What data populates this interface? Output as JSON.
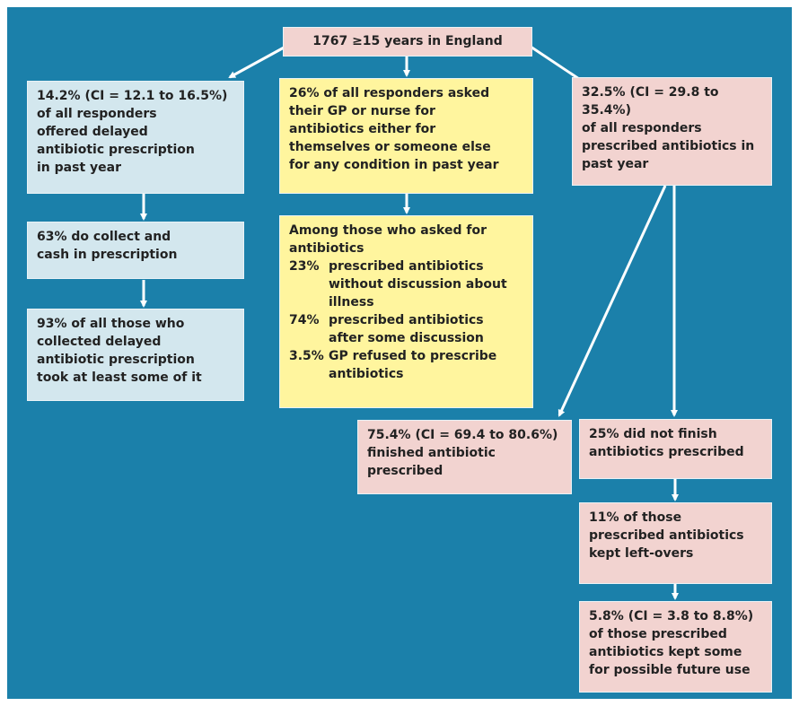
{
  "nodes": [
    {
      "lines": [
        "1767 ≥15 years in England"
      ]
    },
    {
      "lines": [
        "14.2% (CI = 12.1 to 16.5%)",
        "of all responders",
        "offered delayed",
        "antibiotic prescription",
        "in past year"
      ]
    },
    {
      "lines": [
        "63% do collect and",
        "cash in prescription"
      ]
    },
    {
      "lines": [
        "93% of all those who",
        "collected delayed",
        "antibiotic prescription",
        "took at least some of it"
      ]
    },
    {
      "lines": [
        "26% of all responders asked",
        "their GP or nurse for",
        "antibiotics either for",
        "themselves or someone else",
        "for any condition in past year"
      ]
    },
    {
      "lines": [
        "Among those who asked for",
        "antibiotics"
      ],
      "items": [
        {
          "pct": "23%",
          "lines": [
            "prescribed antibiotics",
            "without discussion about",
            "illness"
          ]
        },
        {
          "pct": "74%",
          "lines": [
            "prescribed antibiotics",
            "after some discussion"
          ]
        },
        {
          "pct": "3.5%",
          "lines": [
            "GP refused to prescribe",
            "antibiotics"
          ]
        }
      ]
    },
    {
      "lines": [
        "32.5% (CI = 29.8 to 35.4%)",
        "of all responders",
        "prescribed antibiotics in",
        "past year"
      ]
    },
    {
      "lines": [
        "75.4% (CI = 69.4 to 80.6%)",
        "finished antibiotic",
        "prescribed"
      ]
    },
    {
      "lines": [
        "25% did not finish",
        "antibiotics prescribed"
      ]
    },
    {
      "lines": [
        "11% of those",
        "prescribed antibiotics",
        "kept left-overs"
      ]
    },
    {
      "lines": [
        "5.8% (CI = 3.8 to 8.8%)",
        "of those prescribed",
        "antibiotics kept some",
        "for possible future use"
      ]
    }
  ]
}
